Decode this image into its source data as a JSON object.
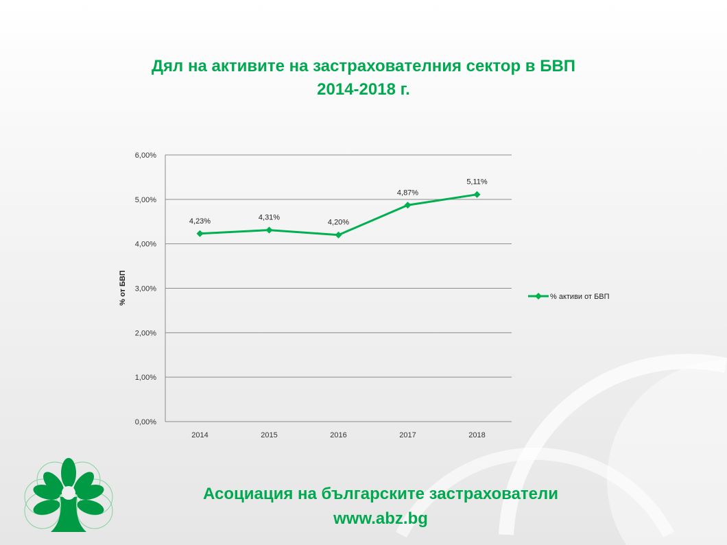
{
  "title_line1": "Дял на активите на застрахователния сектор в БВП",
  "title_line2": "2014-2018 г.",
  "footer_line1": "Асоциация на българските застрахователи",
  "footer_line2": "www.abz.bg",
  "chart_data": {
    "type": "line",
    "categories": [
      "2014",
      "2015",
      "2016",
      "2017",
      "2018"
    ],
    "series": [
      {
        "name": "% активи от БВП",
        "values": [
          4.23,
          4.31,
          4.2,
          4.87,
          5.11
        ],
        "labels": [
          "4,23%",
          "4,31%",
          "4,20%",
          "4,87%",
          "5,11%"
        ],
        "color": "#00b050"
      }
    ],
    "ylabel": "% от БВП",
    "ylim": [
      0,
      6
    ],
    "yticks": [
      "0,00%",
      "1,00%",
      "2,00%",
      "3,00%",
      "4,00%",
      "5,00%",
      "6,00%"
    ],
    "grid": true,
    "legend": "right"
  },
  "colors": {
    "accent": "#00a84f",
    "logo": "#009a44"
  }
}
